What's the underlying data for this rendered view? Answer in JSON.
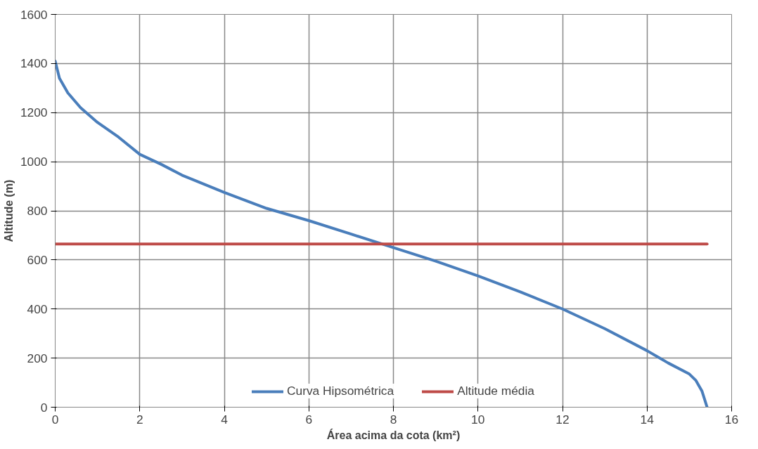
{
  "chart_data": {
    "type": "line",
    "xlabel": "Área acima da cota (km²)",
    "ylabel": "Altitude (m)",
    "xlim": [
      0,
      16
    ],
    "xticks": [
      0,
      2,
      4,
      6,
      8,
      10,
      12,
      14,
      16
    ],
    "ylim": [
      0,
      1600
    ],
    "yticks": [
      0,
      200,
      400,
      600,
      800,
      1000,
      1200,
      1400,
      1600
    ],
    "grid": true,
    "legend": "bottom",
    "series": [
      {
        "name": "Curva Hipsométrica",
        "color": "#4a7ebb",
        "x": [
          0,
          0.1,
          0.3,
          0.6,
          1,
          1.5,
          2,
          2.5,
          3,
          4,
          5,
          6,
          7,
          8,
          9,
          10,
          11,
          12,
          13,
          14,
          14.5,
          15,
          15.15,
          15.3,
          15.42
        ],
        "values": [
          1410,
          1340,
          1280,
          1220,
          1160,
          1100,
          1030,
          990,
          945,
          875,
          810,
          760,
          705,
          650,
          595,
          535,
          470,
          400,
          320,
          230,
          180,
          135,
          110,
          65,
          0
        ]
      },
      {
        "name": "Altitude média",
        "color": "#be4b48",
        "x": [
          0,
          15.42
        ],
        "values": [
          665,
          665
        ]
      }
    ]
  }
}
